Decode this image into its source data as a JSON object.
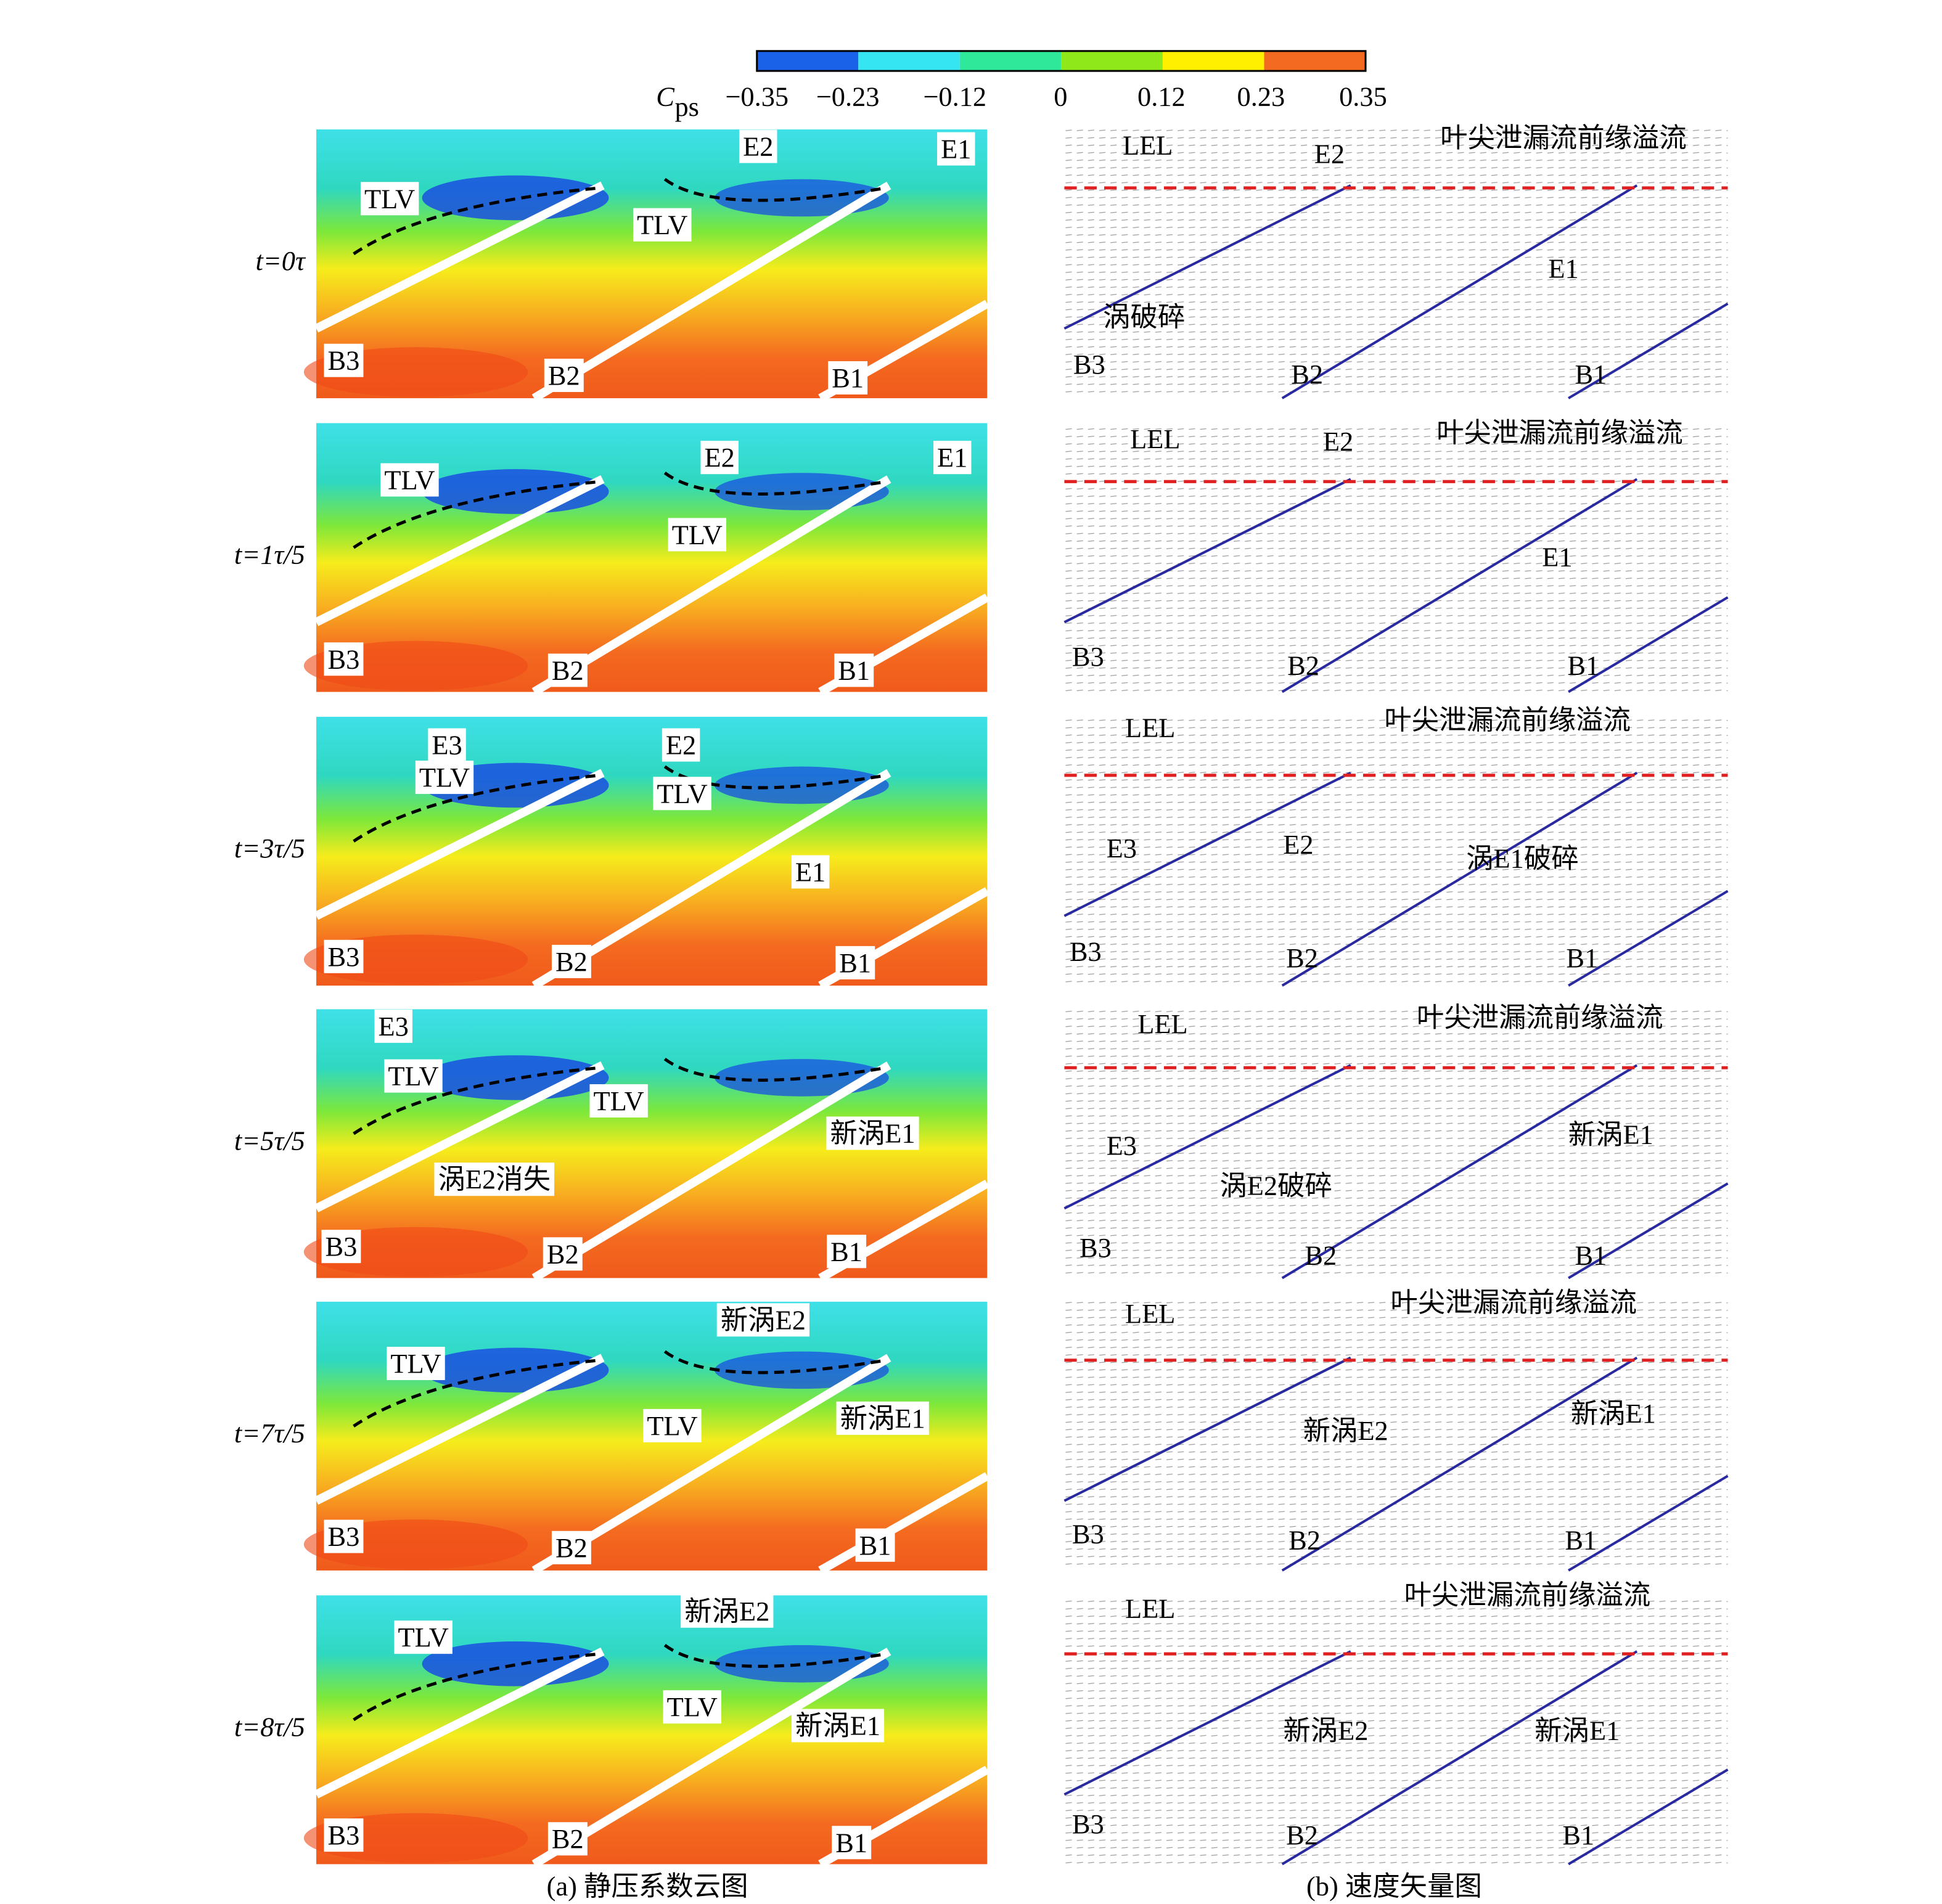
{
  "colorbar": {
    "symbol": "C",
    "subscript": "ps",
    "ticks": [
      "−0.35",
      "−0.23",
      "−0.12",
      "0",
      "0.12",
      "0.23",
      "0.35"
    ],
    "colors": [
      "#1a63e8",
      "#35e6f2",
      "#2fe89a",
      "#8fe81a",
      "#fff000",
      "#f46a20"
    ]
  },
  "rows": [
    {
      "time": "t=0τ",
      "contour_labels": [
        "TLV",
        "E2",
        "E1",
        "TLV",
        "B3",
        "B2",
        "B1"
      ],
      "vector_labels": [
        "LEL",
        "E2",
        "叶尖泄漏流前缘溢流",
        "E1",
        "涡破碎",
        "B3",
        "B2",
        "B1"
      ]
    },
    {
      "time": "t=1τ/5",
      "contour_labels": [
        "TLV",
        "E2",
        "E1",
        "TLV",
        "B3",
        "B2",
        "B1"
      ],
      "vector_labels": [
        "LEL",
        "E2",
        "叶尖泄漏流前缘溢流",
        "E1",
        "B3",
        "B2",
        "B1"
      ]
    },
    {
      "time": "t=3τ/5",
      "contour_labels": [
        "E3",
        "TLV",
        "E2",
        "TLV",
        "E1",
        "B3",
        "B2",
        "B1"
      ],
      "vector_labels": [
        "LEL",
        "叶尖泄漏流前缘溢流",
        "E3",
        "E2",
        "涡E1破碎",
        "B3",
        "B2",
        "B1"
      ]
    },
    {
      "time": "t=5τ/5",
      "contour_labels": [
        "E3",
        "TLV",
        "TLV",
        "新涡E1",
        "涡E2消失",
        "B3",
        "B2",
        "B1"
      ],
      "vector_labels": [
        "LEL",
        "叶尖泄漏流前缘溢流",
        "E3",
        "新涡E1",
        "涡E2破碎",
        "B3",
        "B2",
        "B1"
      ]
    },
    {
      "time": "t=7τ/5",
      "contour_labels": [
        "新涡E2",
        "TLV",
        "TLV",
        "新涡E1",
        "B3",
        "B2",
        "B1"
      ],
      "vector_labels": [
        "LEL",
        "叶尖泄漏流前缘溢流",
        "新涡E2",
        "新涡E1",
        "B3",
        "B2",
        "B1"
      ]
    },
    {
      "time": "t=8τ/5",
      "contour_labels": [
        "TLV",
        "新涡E2",
        "TLV",
        "新涡E1",
        "B3",
        "B2",
        "B1"
      ],
      "vector_labels": [
        "LEL",
        "叶尖泄漏流前缘溢流",
        "新涡E2",
        "新涡E1",
        "B3",
        "B2",
        "B1"
      ]
    }
  ],
  "captions": [
    "(a) 静压系数云图",
    "(b) 速度矢量图"
  ]
}
